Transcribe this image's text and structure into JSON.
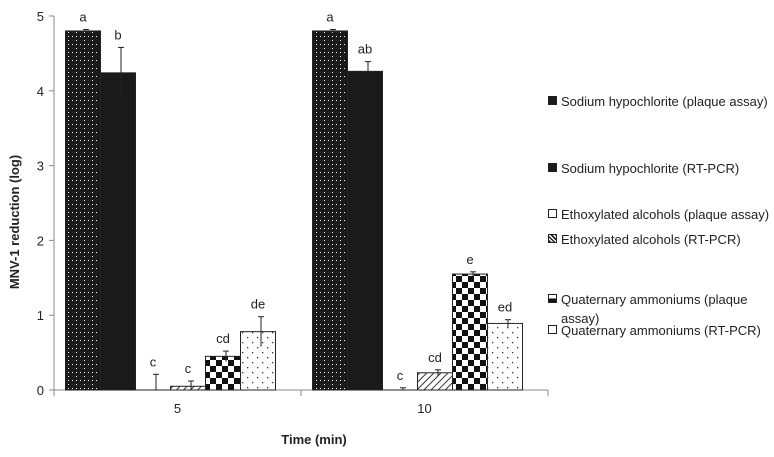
{
  "chart_data": {
    "type": "bar",
    "categories": [
      "5",
      "10"
    ],
    "xlabel": "Time (min)",
    "ylabel": "MNV-1 reduction (log)",
    "ylim": [
      0,
      5
    ],
    "yticks": [
      "0",
      "1",
      "2",
      "3",
      "4",
      "5"
    ],
    "grid": false,
    "legend_position": "right",
    "series": [
      {
        "name": "Sodium hypochlorite (plaque assay)",
        "values": [
          4.8,
          4.8
        ],
        "errors": [
          0.02,
          0.02
        ],
        "letters": [
          "a",
          "a"
        ],
        "pattern": "dots-dark"
      },
      {
        "name": "Sodium hypochlorite (RT-PCR)",
        "values": [
          4.24,
          4.26
        ],
        "errors": [
          0.34,
          0.13
        ],
        "letters": [
          "b",
          "ab"
        ],
        "pattern": "solid-dark"
      },
      {
        "name": "Ethoxylated alcohols (plaque assay)",
        "values": [
          0.0,
          0.0
        ],
        "errors": [
          0.21,
          0.03
        ],
        "letters": [
          "c",
          "c"
        ],
        "pattern": "white"
      },
      {
        "name": "Ethoxylated alcohols (RT-PCR)",
        "values": [
          0.05,
          0.23
        ],
        "errors": [
          0.07,
          0.04
        ],
        "letters": [
          "c",
          "cd"
        ],
        "pattern": "hatch"
      },
      {
        "name": "Quaternary ammoniums (plaque assay)",
        "values": [
          0.45,
          1.55
        ],
        "errors": [
          0.07,
          0.03
        ],
        "letters": [
          "cd",
          "e"
        ],
        "pattern": "checker"
      },
      {
        "name": "Quaternary ammoniums (RT-PCR)",
        "values": [
          0.78,
          0.89
        ],
        "errors": [
          0.2,
          0.05
        ],
        "letters": [
          "de",
          "ed"
        ],
        "pattern": "sparse-dots"
      }
    ]
  }
}
